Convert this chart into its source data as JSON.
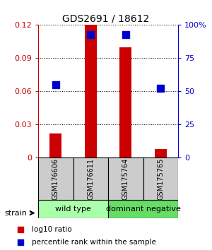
{
  "title": "GDS2691 / 18612",
  "samples": [
    "GSM176606",
    "GSM176611",
    "GSM175764",
    "GSM175765"
  ],
  "log10_ratio": [
    0.022,
    0.12,
    0.1,
    0.008
  ],
  "percentile_rank": [
    55,
    93,
    93,
    52
  ],
  "groups": [
    {
      "label": "wild type",
      "samples": [
        0,
        1
      ],
      "color": "#aaffaa"
    },
    {
      "label": "dominant negative",
      "samples": [
        2,
        3
      ],
      "color": "#66dd66"
    }
  ],
  "ylim_left": [
    0,
    0.12
  ],
  "ylim_right": [
    0,
    100
  ],
  "yticks_left": [
    0,
    0.03,
    0.06,
    0.09,
    0.12
  ],
  "ytick_labels_left": [
    "0",
    "0.03",
    "0.06",
    "0.09",
    "0.12"
  ],
  "yticks_right": [
    0,
    25,
    50,
    75,
    100
  ],
  "ytick_labels_right": [
    "0",
    "25",
    "50",
    "75",
    "100%"
  ],
  "bar_color": "#cc0000",
  "dot_color": "#0000cc",
  "bar_width": 0.35,
  "dot_size": 55,
  "background_color": "#ffffff",
  "grid_color": "#000000",
  "sample_box_color": "#cccccc",
  "left_color": "#cc0000",
  "right_color": "#0000cc"
}
